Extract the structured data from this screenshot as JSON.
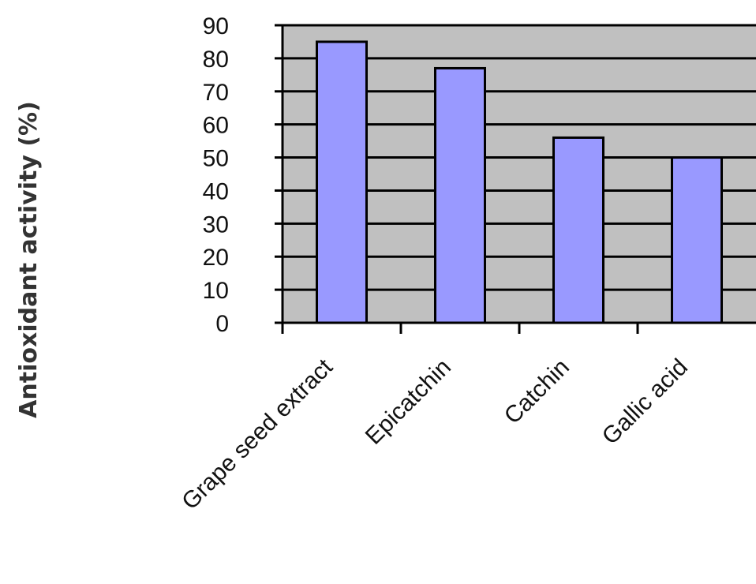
{
  "chart_data": {
    "type": "bar",
    "title": "",
    "xlabel": "",
    "ylabel": "Antioxidant activity (%)",
    "categories": [
      "Grape seed extract",
      "Epicatchin",
      "Catchin",
      "Gallic acid"
    ],
    "values": [
      85,
      77,
      56,
      50
    ],
    "ylim": [
      0,
      90
    ],
    "yticks": [
      "0",
      "10",
      "20",
      "30",
      "40",
      "50",
      "60",
      "70",
      "80",
      "90"
    ],
    "grid": true,
    "legend": "none",
    "colors": {
      "bar_fill": "#9999ff",
      "plot_background": "#c0c0c0",
      "gridline": "#000000"
    }
  }
}
